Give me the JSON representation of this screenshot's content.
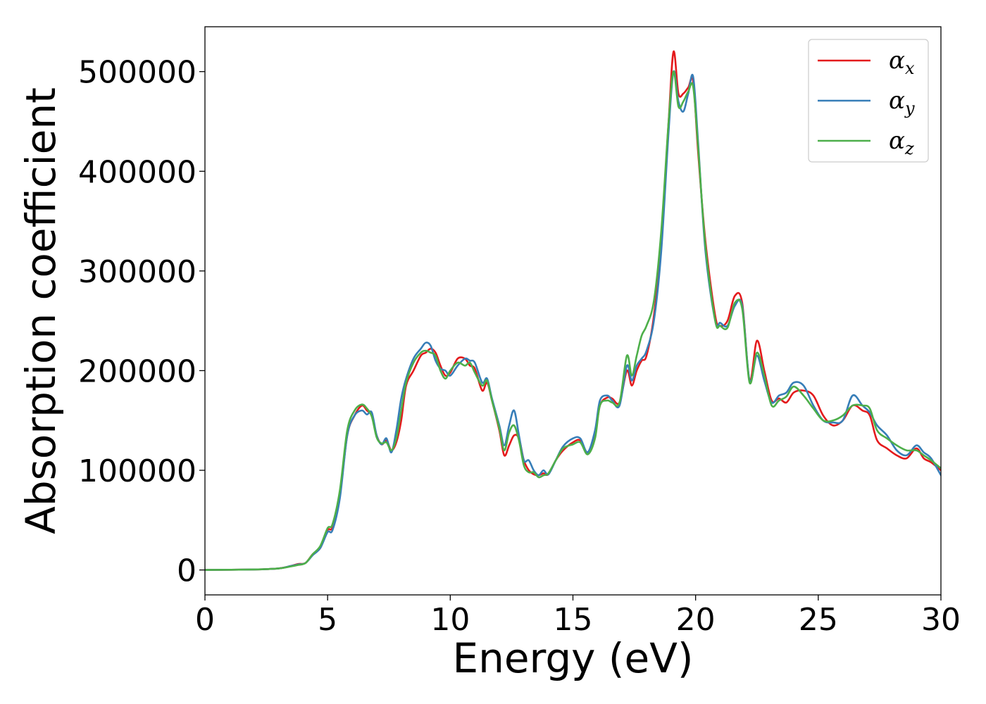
{
  "chart_data": {
    "type": "line",
    "xlabel": "Energy (eV)",
    "ylabel": "Absorption coefficient",
    "xlim": [
      0,
      30
    ],
    "ylim": [
      -25000,
      545000
    ],
    "xticks": [
      0,
      5,
      10,
      15,
      20,
      25,
      30
    ],
    "xtick_labels": [
      "0",
      "5",
      "10",
      "15",
      "20",
      "25",
      "30"
    ],
    "yticks": [
      0,
      100000,
      200000,
      300000,
      400000,
      500000
    ],
    "ytick_labels": [
      "0",
      "100000",
      "200000",
      "300000",
      "400000",
      "500000"
    ],
    "grid": false,
    "legend": "top-right",
    "series": [
      {
        "name": "αx",
        "symbol": "α",
        "subscript": "x",
        "color": "#e41a1c",
        "x": [
          0,
          2,
          3,
          3.5,
          3.8,
          4.1,
          4.4,
          4.7,
          5.0,
          5.2,
          5.5,
          5.8,
          6.1,
          6.4,
          6.6,
          6.8,
          7.0,
          7.2,
          7.4,
          7.6,
          7.8,
          8.0,
          8.2,
          8.5,
          8.8,
          9.0,
          9.2,
          9.4,
          9.6,
          9.8,
          10.0,
          10.3,
          10.6,
          10.8,
          11.0,
          11.3,
          11.5,
          11.7,
          12.0,
          12.2,
          12.4,
          12.6,
          12.8,
          13.0,
          13.2,
          13.4,
          13.6,
          13.8,
          14.0,
          14.3,
          14.6,
          15.0,
          15.3,
          15.6,
          15.9,
          16.1,
          16.4,
          16.6,
          16.9,
          17.2,
          17.4,
          17.6,
          17.8,
          18.0,
          18.3,
          18.6,
          18.9,
          19.1,
          19.3,
          19.5,
          19.7,
          19.9,
          20.1,
          20.4,
          20.8,
          21.0,
          21.3,
          21.6,
          21.9,
          22.2,
          22.5,
          22.8,
          23.1,
          23.4,
          23.7,
          24.0,
          24.4,
          24.8,
          25.2,
          25.6,
          26.0,
          26.4,
          26.8,
          27.1,
          27.4,
          27.8,
          28.2,
          28.6,
          29.0,
          29.3,
          29.6,
          30.0
        ],
        "y": [
          0,
          500,
          1500,
          4000,
          6000,
          7000,
          16000,
          22000,
          40000,
          43000,
          75000,
          135000,
          155000,
          165000,
          160000,
          155000,
          135000,
          126000,
          130000,
          120000,
          128000,
          150000,
          185000,
          200000,
          215000,
          218000,
          222000,
          218000,
          205000,
          195000,
          198000,
          212000,
          212000,
          205000,
          202000,
          180000,
          188000,
          170000,
          140000,
          115000,
          125000,
          135000,
          132000,
          110000,
          100000,
          96000,
          95000,
          97000,
          96000,
          110000,
          120000,
          128000,
          130000,
          118000,
          135000,
          165000,
          173000,
          172000,
          168000,
          200000,
          185000,
          200000,
          210000,
          215000,
          255000,
          330000,
          450000,
          520000,
          478000,
          478000,
          484000,
          490000,
          420000,
          330000,
          255000,
          245000,
          250000,
          275000,
          268000,
          190000,
          230000,
          200000,
          170000,
          172000,
          168000,
          178000,
          180000,
          175000,
          155000,
          145000,
          150000,
          165000,
          160000,
          155000,
          130000,
          122000,
          115000,
          112000,
          122000,
          112000,
          108000,
          100000
        ]
      },
      {
        "name": "αy",
        "symbol": "α",
        "subscript": "y",
        "color": "#377eb8",
        "x": [
          0,
          2,
          3,
          3.5,
          3.8,
          4.1,
          4.4,
          4.7,
          5.0,
          5.2,
          5.5,
          5.8,
          6.1,
          6.4,
          6.6,
          6.8,
          7.0,
          7.2,
          7.4,
          7.6,
          7.8,
          8.0,
          8.2,
          8.5,
          8.8,
          9.0,
          9.2,
          9.4,
          9.6,
          9.8,
          10.0,
          10.3,
          10.6,
          10.8,
          11.0,
          11.3,
          11.5,
          11.7,
          12.0,
          12.2,
          12.4,
          12.6,
          12.8,
          13.0,
          13.2,
          13.4,
          13.6,
          13.8,
          14.0,
          14.3,
          14.6,
          15.0,
          15.3,
          15.6,
          15.9,
          16.1,
          16.4,
          16.6,
          16.9,
          17.2,
          17.4,
          17.6,
          17.8,
          18.0,
          18.3,
          18.6,
          18.9,
          19.1,
          19.3,
          19.5,
          19.7,
          19.9,
          20.1,
          20.4,
          20.8,
          21.0,
          21.3,
          21.6,
          21.9,
          22.2,
          22.5,
          22.8,
          23.1,
          23.4,
          23.7,
          24.0,
          24.4,
          24.8,
          25.2,
          25.6,
          26.0,
          26.4,
          26.8,
          27.1,
          27.4,
          27.8,
          28.2,
          28.6,
          29.0,
          29.3,
          29.6,
          30.0
        ],
        "y": [
          0,
          500,
          1500,
          4000,
          5500,
          7000,
          15000,
          22000,
          38000,
          40000,
          72000,
          135000,
          155000,
          160000,
          156000,
          158000,
          135000,
          126000,
          132000,
          118000,
          140000,
          172000,
          192000,
          212000,
          222000,
          228000,
          225000,
          210000,
          202000,
          200000,
          195000,
          205000,
          212000,
          210000,
          208000,
          188000,
          192000,
          172000,
          145000,
          125000,
          145000,
          160000,
          135000,
          110000,
          110000,
          100000,
          95000,
          100000,
          96000,
          110000,
          124000,
          132000,
          132000,
          118000,
          140000,
          170000,
          175000,
          170000,
          165000,
          205000,
          190000,
          205000,
          212000,
          220000,
          250000,
          320000,
          440000,
          500000,
          470000,
          460000,
          478000,
          495000,
          430000,
          320000,
          250000,
          248000,
          245000,
          265000,
          265000,
          190000,
          215000,
          190000,
          168000,
          175000,
          178000,
          188000,
          185000,
          165000,
          150000,
          148000,
          150000,
          175000,
          165000,
          158000,
          145000,
          135000,
          120000,
          115000,
          125000,
          118000,
          112000,
          95000
        ]
      },
      {
        "name": "αz",
        "symbol": "α",
        "subscript": "z",
        "color": "#4daf4a",
        "x": [
          0,
          2,
          3,
          3.5,
          3.8,
          4.1,
          4.4,
          4.7,
          5.0,
          5.2,
          5.5,
          5.8,
          6.1,
          6.4,
          6.6,
          6.8,
          7.0,
          7.2,
          7.4,
          7.6,
          7.8,
          8.0,
          8.2,
          8.5,
          8.8,
          9.0,
          9.2,
          9.4,
          9.6,
          9.8,
          10.0,
          10.3,
          10.6,
          10.8,
          11.0,
          11.3,
          11.5,
          11.7,
          12.0,
          12.2,
          12.4,
          12.6,
          12.8,
          13.0,
          13.2,
          13.4,
          13.6,
          13.8,
          14.0,
          14.3,
          14.6,
          15.0,
          15.3,
          15.6,
          15.9,
          16.1,
          16.4,
          16.6,
          16.9,
          17.2,
          17.4,
          17.6,
          17.8,
          18.0,
          18.3,
          18.6,
          18.9,
          19.1,
          19.3,
          19.5,
          19.7,
          19.9,
          20.1,
          20.4,
          20.8,
          21.0,
          21.3,
          21.6,
          21.9,
          22.2,
          22.5,
          22.8,
          23.1,
          23.4,
          23.7,
          24.0,
          24.4,
          24.8,
          25.2,
          25.6,
          26.0,
          26.4,
          26.8,
          27.1,
          27.4,
          27.8,
          28.2,
          28.6,
          29.0,
          29.3,
          29.6,
          30.0
        ],
        "y": [
          0,
          500,
          1500,
          3500,
          5000,
          7000,
          16000,
          24000,
          42000,
          46000,
          80000,
          140000,
          160000,
          166000,
          162000,
          154000,
          133000,
          127000,
          128000,
          120000,
          132000,
          160000,
          188000,
          208000,
          218000,
          220000,
          218000,
          215000,
          200000,
          192000,
          200000,
          208000,
          205000,
          208000,
          198000,
          185000,
          190000,
          170000,
          142000,
          120000,
          138000,
          145000,
          130000,
          105000,
          98000,
          98000,
          93000,
          95000,
          97000,
          110000,
          122000,
          126000,
          128000,
          116000,
          132000,
          165000,
          170000,
          168000,
          168000,
          215000,
          195000,
          215000,
          235000,
          245000,
          270000,
          340000,
          450000,
          500000,
          465000,
          470000,
          480000,
          485000,
          425000,
          325000,
          250000,
          245000,
          243000,
          268000,
          262000,
          188000,
          218000,
          195000,
          165000,
          170000,
          174000,
          184000,
          175000,
          162000,
          150000,
          150000,
          155000,
          165000,
          165000,
          162000,
          140000,
          132000,
          125000,
          120000,
          120000,
          115000,
          110000,
          102000
        ]
      }
    ]
  }
}
